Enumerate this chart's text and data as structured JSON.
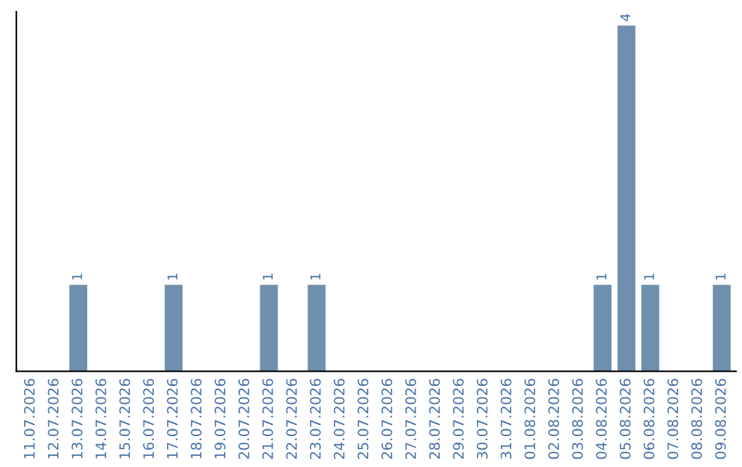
{
  "chart_data": {
    "type": "bar",
    "categories": [
      "11.07.2026",
      "12.07.2026",
      "13.07.2026",
      "14.07.2026",
      "15.07.2026",
      "16.07.2026",
      "17.07.2026",
      "18.07.2026",
      "19.07.2026",
      "20.07.2026",
      "21.07.2026",
      "22.07.2026",
      "23.07.2026",
      "24.07.2026",
      "25.07.2026",
      "26.07.2026",
      "27.07.2026",
      "28.07.2026",
      "29.07.2026",
      "30.07.2026",
      "31.07.2026",
      "01.08.2026",
      "02.08.2026",
      "03.08.2026",
      "04.08.2026",
      "05.08.2026",
      "06.08.2026",
      "07.08.2026",
      "08.08.2026",
      "09.08.2026"
    ],
    "values": [
      0,
      0,
      1,
      0,
      0,
      0,
      1,
      0,
      0,
      0,
      1,
      0,
      1,
      0,
      0,
      0,
      0,
      0,
      0,
      0,
      0,
      0,
      0,
      0,
      1,
      4,
      1,
      0,
      0,
      1
    ],
    "value_labels": [
      null,
      null,
      "1",
      null,
      null,
      null,
      "1",
      null,
      null,
      null,
      "1",
      null,
      "1",
      null,
      null,
      null,
      null,
      null,
      null,
      null,
      null,
      null,
      null,
      null,
      "1",
      "4",
      "1",
      null,
      null,
      "1"
    ],
    "color": "#6f8fae",
    "tick_labels": "x",
    "grid": false
  }
}
